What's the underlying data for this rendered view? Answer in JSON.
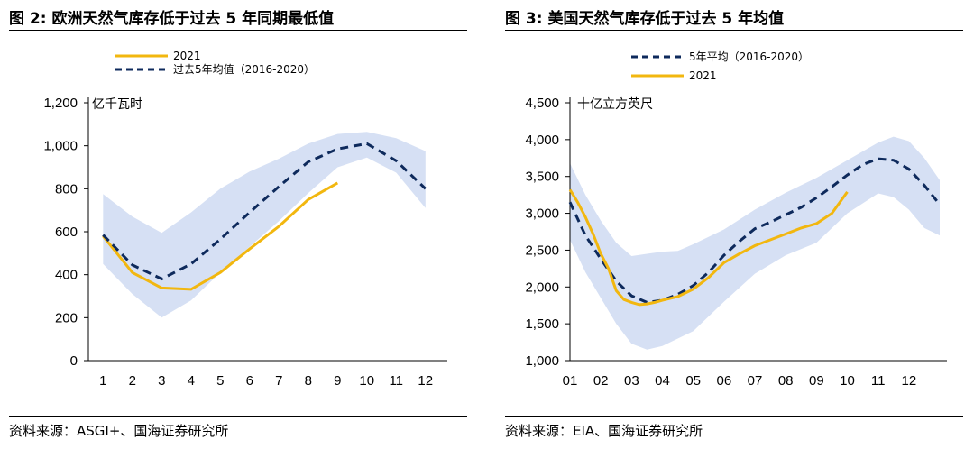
{
  "left": {
    "title": "图 2:  欧洲天然气库存低于过去 5 年同期最低值",
    "source": "资料来源：ASGI+、国海证券研究所"
  },
  "right": {
    "title": "图 3:  美国天然气库存低于过去 5 年均值",
    "source": "资料来源：EIA、国海证券研究所"
  },
  "colors": {
    "actual": "#F2B70F",
    "avg": "#0E2A5C",
    "band": "#D6E0F4"
  },
  "chart_data": [
    {
      "type": "line",
      "unit_label": "亿千瓦时",
      "ylim": [
        0,
        1200
      ],
      "yticks": [
        "0",
        "200",
        "400",
        "600",
        "800",
        "1,000",
        "1,200"
      ],
      "ytick_values": [
        0,
        200,
        400,
        600,
        800,
        1000,
        1200
      ],
      "xlim": [
        0.5,
        12.5
      ],
      "x_ticks": [
        "1",
        "2",
        "3",
        "4",
        "5",
        "6",
        "7",
        "8",
        "9",
        "10",
        "11",
        "12"
      ],
      "x_tick_values": [
        1,
        2,
        3,
        4,
        5,
        6,
        7,
        8,
        9,
        10,
        11,
        12
      ],
      "legend": [
        "2021",
        "过去5年均值（2016-2020）"
      ],
      "legend_placement": "top",
      "band": {
        "x": [
          1,
          2,
          3,
          4,
          5,
          6,
          7,
          8,
          9,
          10,
          11,
          12
        ],
        "upper": [
          775,
          670,
          595,
          690,
          800,
          880,
          940,
          1010,
          1055,
          1065,
          1035,
          975
        ],
        "lower": [
          450,
          310,
          200,
          280,
          410,
          530,
          650,
          780,
          900,
          945,
          875,
          710
        ]
      },
      "series": [
        {
          "name": "2021",
          "style": "solid",
          "x": [
            1,
            2,
            3,
            4,
            5,
            6,
            7,
            8,
            9
          ],
          "values": [
            580,
            410,
            338,
            332,
            410,
            520,
            625,
            750,
            827
          ]
        },
        {
          "name": "过去5年均值（2016-2020）",
          "style": "dashed",
          "x": [
            1,
            2,
            3,
            4,
            5,
            6,
            7,
            8,
            9,
            10,
            11,
            12
          ],
          "values": [
            585,
            445,
            380,
            450,
            565,
            690,
            810,
            925,
            985,
            1010,
            930,
            800
          ]
        }
      ]
    },
    {
      "type": "line",
      "unit_label": "十亿立方英尺",
      "ylim": [
        1000,
        4500
      ],
      "yticks": [
        "1,000",
        "1,500",
        "2,000",
        "2,500",
        "3,000",
        "3,500",
        "4,000",
        "4,500"
      ],
      "ytick_values": [
        1000,
        1500,
        2000,
        2500,
        3000,
        3500,
        4000,
        4500
      ],
      "xlim": [
        1,
        13
      ],
      "x_ticks": [
        "01",
        "02",
        "03",
        "04",
        "05",
        "06",
        "07",
        "08",
        "09",
        "10",
        "11",
        "12"
      ],
      "x_tick_values": [
        1,
        2,
        3,
        4,
        5,
        6,
        7,
        8,
        9,
        10,
        11,
        12
      ],
      "legend": [
        "5年平均（2016-2020）",
        "2021"
      ],
      "legend_placement": "top",
      "band": {
        "x": [
          1,
          1.5,
          2,
          2.5,
          3,
          3.5,
          4,
          4.5,
          5,
          6,
          7,
          8,
          9,
          10,
          11,
          11.5,
          12,
          12.5,
          13
        ],
        "upper": [
          3680,
          3250,
          2900,
          2600,
          2420,
          2450,
          2480,
          2490,
          2580,
          2780,
          3050,
          3280,
          3480,
          3720,
          3960,
          4040,
          3980,
          3750,
          3450
        ],
        "lower": [
          2640,
          2200,
          1850,
          1500,
          1230,
          1150,
          1200,
          1300,
          1400,
          1800,
          2180,
          2430,
          2600,
          3000,
          3270,
          3220,
          3050,
          2800,
          2700
        ]
      },
      "series": [
        {
          "name": "5年平均（2016-2020）",
          "style": "dashed",
          "x": [
            1,
            1.5,
            2,
            2.5,
            3,
            3.5,
            4,
            4.5,
            5,
            5.5,
            6,
            6.5,
            7,
            7.5,
            8,
            8.5,
            9,
            9.5,
            10,
            10.5,
            11,
            11.5,
            12,
            12.5,
            13
          ],
          "values": [
            3150,
            2700,
            2380,
            2080,
            1880,
            1790,
            1820,
            1900,
            2020,
            2200,
            2430,
            2620,
            2790,
            2880,
            2980,
            3080,
            3210,
            3360,
            3520,
            3660,
            3740,
            3720,
            3600,
            3380,
            3120
          ]
        },
        {
          "name": "2021",
          "style": "solid",
          "x": [
            1,
            1.25,
            1.5,
            1.75,
            2,
            2.25,
            2.5,
            2.75,
            3,
            3.25,
            3.5,
            3.75,
            4,
            4.5,
            5,
            5.5,
            6,
            6.5,
            7,
            7.5,
            8,
            8.5,
            9,
            9.5,
            10
          ],
          "values": [
            3320,
            3150,
            2950,
            2720,
            2450,
            2250,
            1950,
            1830,
            1790,
            1760,
            1770,
            1790,
            1820,
            1870,
            1970,
            2130,
            2330,
            2450,
            2560,
            2640,
            2720,
            2800,
            2860,
            3000,
            3290
          ]
        }
      ]
    }
  ]
}
